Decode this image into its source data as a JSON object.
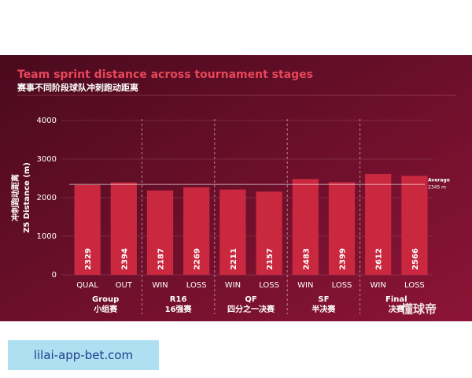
{
  "chart_data": {
    "type": "bar",
    "title": "Team sprint distance across tournament stages",
    "subtitle": "赛事不同阶段球队冲刺跑动距离",
    "y_label": [
      "冲刺跑动距离",
      "Z5 Distance (m)"
    ],
    "categories": [
      "QUAL",
      "OUT",
      "WIN",
      "LOSS",
      "WIN",
      "LOSS",
      "WIN",
      "LOSS",
      "WIN",
      "LOSS"
    ],
    "values": [
      2329,
      2394,
      2187,
      2269,
      2211,
      2157,
      2483,
      2399,
      2612,
      2566
    ],
    "color": "#c9283f",
    "groups": [
      {
        "name": "Group",
        "name_zh": "小组赛"
      },
      {
        "name": "R16",
        "name_zh": "16强赛"
      },
      {
        "name": "QF",
        "name_zh": "四分之一决赛"
      },
      {
        "name": "SF",
        "name_zh": "半决赛"
      },
      {
        "name": "Final",
        "name_zh": "决赛"
      }
    ],
    "average": {
      "label": "Average",
      "value": 2345,
      "value_label": "2345 m"
    },
    "ylim": [
      0,
      4000
    ],
    "yticks": [
      0,
      1000,
      2000,
      3000,
      4000
    ],
    "grid": true
  },
  "watermark": "懂球帝",
  "footer": {
    "link": "lilai-app-bet.com"
  }
}
